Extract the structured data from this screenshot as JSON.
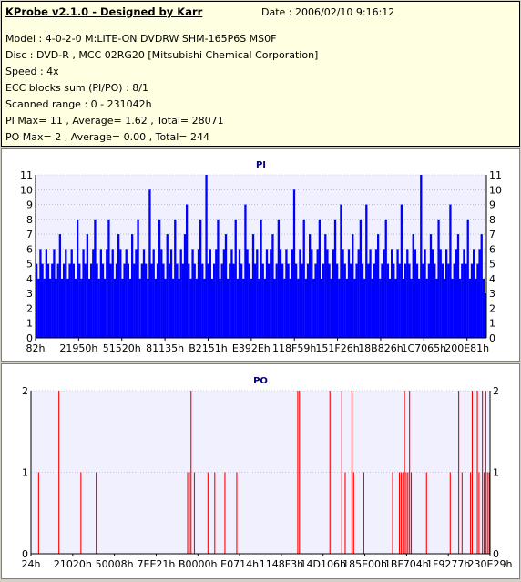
{
  "header": {
    "title": "KProbe v2.1.0 - Designed by Karr",
    "date": "Date : 2006/02/10 9:16:12",
    "lines": [
      "Model : 4-0-2-0 M:LITE-ON DVDRW SHM-165P6S MS0F",
      "Disc : DVD-R , MCC 02RG20   [Mitsubishi Chemical Corporation]",
      "Speed : 4x",
      "ECC blocks sum (PI/PO) : 8/1",
      "Scanned range : 0 - 231042h",
      "PI Max= 11 , Average= 1.62 , Total= 28071",
      "PO Max= 2 , Average= 0.00 , Total= 244"
    ]
  },
  "colors": {
    "pi_series": "#0000ff",
    "po_series": "#ff0000",
    "plot_bg": "#f0f0ff"
  },
  "chart_data": [
    {
      "type": "bar",
      "title": "PI",
      "ylim": [
        0,
        11
      ],
      "yticks": [
        0,
        1,
        2,
        3,
        4,
        5,
        6,
        7,
        8,
        9,
        10,
        11
      ],
      "xticks": [
        "82h",
        "21950h",
        "51520h",
        "81135h",
        "B2151h",
        "E392Eh",
        "118F59h",
        "151F26h",
        "18B826h",
        "1C7065h",
        "200E81h"
      ],
      "grid": true,
      "values": [
        5,
        4,
        6,
        5,
        4,
        6,
        5,
        4,
        5,
        6,
        4,
        5,
        7,
        4,
        5,
        6,
        4,
        5,
        6,
        5,
        4,
        8,
        5,
        4,
        6,
        5,
        7,
        4,
        5,
        6,
        8,
        5,
        4,
        6,
        5,
        4,
        6,
        8,
        5,
        6,
        4,
        5,
        7,
        6,
        4,
        5,
        6,
        5,
        4,
        7,
        5,
        6,
        8,
        4,
        5,
        6,
        5,
        4,
        10,
        5,
        6,
        4,
        5,
        8,
        6,
        5,
        4,
        7,
        5,
        6,
        4,
        8,
        5,
        4,
        6,
        5,
        7,
        9,
        5,
        4,
        6,
        5,
        4,
        6,
        8,
        5,
        4,
        11,
        5,
        6,
        4,
        5,
        6,
        8,
        4,
        5,
        6,
        7,
        4,
        5,
        6,
        5,
        8,
        4,
        6,
        5,
        4,
        9,
        6,
        5,
        4,
        7,
        5,
        6,
        4,
        8,
        5,
        4,
        6,
        5,
        6,
        7,
        4,
        5,
        8,
        6,
        5,
        4,
        6,
        5,
        4,
        6,
        10,
        5,
        4,
        6,
        5,
        8,
        4,
        5,
        7,
        6,
        4,
        5,
        6,
        8,
        4,
        5,
        7,
        6,
        5,
        4,
        6,
        8,
        5,
        4,
        9,
        6,
        5,
        4,
        6,
        5,
        7,
        4,
        5,
        6,
        8,
        5,
        4,
        9,
        5,
        6,
        4,
        5,
        6,
        7,
        4,
        5,
        6,
        8,
        5,
        4,
        6,
        5,
        4,
        6,
        5,
        9,
        4,
        5,
        6,
        5,
        4,
        7,
        6,
        5,
        4,
        11,
        5,
        6,
        4,
        5,
        7,
        6,
        5,
        4,
        8,
        6,
        5,
        4,
        6,
        5,
        9,
        4,
        5,
        6,
        7,
        4,
        5,
        6,
        5,
        8,
        4,
        5,
        6,
        4,
        5,
        6,
        7,
        4,
        3
      ]
    },
    {
      "type": "bar",
      "title": "PO",
      "ylim": [
        0,
        2
      ],
      "yticks": [
        0,
        1,
        2
      ],
      "xticks": [
        "24h",
        "21020h",
        "50008h",
        "7EE21h",
        "B0000h",
        "E0714h",
        "1148F3h",
        "14D106h",
        "185E00h",
        "1BF704h",
        "1F9277h",
        "230E29h"
      ],
      "grid": true,
      "values": [
        0,
        0,
        0,
        0,
        1,
        0,
        0,
        0,
        0,
        0,
        0,
        0,
        0,
        0,
        0,
        0,
        2,
        0,
        0,
        0,
        0,
        0,
        0,
        0,
        0,
        0,
        0,
        0,
        0,
        1,
        0,
        0,
        0,
        0,
        0,
        0,
        0,
        0,
        1,
        0,
        0,
        0,
        0,
        0,
        0,
        0,
        0,
        0,
        0,
        0,
        0,
        0,
        0,
        0,
        0,
        0,
        0,
        0,
        0,
        0,
        0,
        0,
        0,
        0,
        0,
        0,
        0,
        0,
        0,
        0,
        0,
        0,
        0,
        0,
        0,
        0,
        0,
        0,
        0,
        0,
        0,
        0,
        0,
        0,
        0,
        0,
        0,
        0,
        0,
        0,
        0,
        0,
        1,
        1,
        2,
        0,
        1,
        0,
        0,
        0,
        0,
        0,
        0,
        0,
        1,
        0,
        0,
        0,
        1,
        0,
        0,
        0,
        0,
        0,
        1,
        0,
        0,
        0,
        0,
        0,
        0,
        1,
        0,
        0,
        0,
        0,
        0,
        0,
        0,
        0,
        0,
        0,
        0,
        0,
        0,
        0,
        0,
        0,
        0,
        0,
        0,
        0,
        0,
        0,
        0,
        0,
        0,
        0,
        0,
        0,
        0,
        0,
        0,
        0,
        0,
        0,
        0,
        2,
        2,
        0,
        0,
        0,
        0,
        0,
        0,
        0,
        0,
        0,
        0,
        0,
        0,
        0,
        0,
        0,
        0,
        0,
        2,
        0,
        0,
        0,
        0,
        0,
        0,
        2,
        0,
        1,
        0,
        0,
        0,
        2,
        1,
        0,
        0,
        0,
        0,
        0,
        1,
        0,
        0,
        0,
        0,
        0,
        0,
        0,
        0,
        0,
        0,
        0,
        0,
        0,
        0,
        0,
        0,
        1,
        0,
        0,
        0,
        1,
        1,
        1,
        2,
        1,
        1,
        2,
        1,
        0,
        0,
        0,
        0,
        0,
        0,
        0,
        0,
        1,
        0,
        0,
        0,
        0,
        0,
        0,
        0,
        0,
        0,
        0,
        0,
        0,
        0,
        1,
        0,
        0,
        0,
        0,
        2,
        0,
        1,
        0,
        0,
        0,
        0,
        1,
        2,
        0,
        0,
        2,
        1,
        0,
        2,
        1,
        2,
        1,
        1
      ]
    }
  ]
}
